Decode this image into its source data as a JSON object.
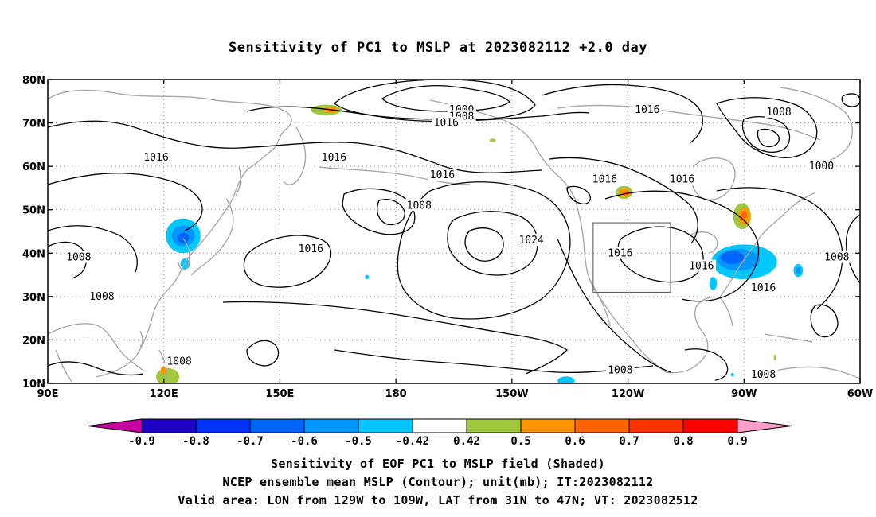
{
  "title": "Sensitivity of PC1 to MSLP at 2023082112 +2.0 day",
  "map": {
    "lon_range": [
      90,
      300
    ],
    "lat_range": [
      10,
      80
    ],
    "gridlines": "dotted",
    "lon_ticks": [
      {
        "lon": 90,
        "label": "90E"
      },
      {
        "lon": 120,
        "label": "120E"
      },
      {
        "lon": 150,
        "label": "150E"
      },
      {
        "lon": 180,
        "label": "180"
      },
      {
        "lon": 210,
        "label": "150W"
      },
      {
        "lon": 240,
        "label": "120W"
      },
      {
        "lon": 270,
        "label": "90W"
      },
      {
        "lon": 300,
        "label": "60W"
      }
    ],
    "lat_ticks": [
      {
        "lat": 10,
        "label": "10N"
      },
      {
        "lat": 20,
        "label": "20N"
      },
      {
        "lat": 30,
        "label": "30N"
      },
      {
        "lat": 40,
        "label": "40N"
      },
      {
        "lat": 50,
        "label": "50N"
      },
      {
        "lat": 60,
        "label": "60N"
      },
      {
        "lat": 70,
        "label": "70N"
      },
      {
        "lat": 80,
        "label": "80N"
      }
    ],
    "valid_box": {
      "lon_min": 231,
      "lon_max": 251,
      "lat_min": 31,
      "lat_max": 47
    },
    "contour_labels": [
      {
        "text": "1000",
        "lon": 197,
        "lat": 73
      },
      {
        "text": "1008",
        "lon": 197,
        "lat": 71.5
      },
      {
        "text": "1016",
        "lon": 193,
        "lat": 70
      },
      {
        "text": "1016",
        "lon": 245,
        "lat": 73
      },
      {
        "text": "1008",
        "lon": 279,
        "lat": 72.5
      },
      {
        "text": "1016",
        "lon": 118,
        "lat": 62
      },
      {
        "text": "1016",
        "lon": 164,
        "lat": 62
      },
      {
        "text": "1016",
        "lon": 192,
        "lat": 58
      },
      {
        "text": "1000",
        "lon": 290,
        "lat": 60
      },
      {
        "text": "1016",
        "lon": 234,
        "lat": 57
      },
      {
        "text": "1016",
        "lon": 254,
        "lat": 57
      },
      {
        "text": "1008",
        "lon": 186,
        "lat": 51
      },
      {
        "text": "1024",
        "lon": 215,
        "lat": 43
      },
      {
        "text": "1016",
        "lon": 158,
        "lat": 41
      },
      {
        "text": "1016",
        "lon": 238,
        "lat": 40
      },
      {
        "text": "1016",
        "lon": 259,
        "lat": 37
      },
      {
        "text": "1008",
        "lon": 98,
        "lat": 39
      },
      {
        "text": "1008",
        "lon": 294,
        "lat": 39
      },
      {
        "text": "1016",
        "lon": 275,
        "lat": 32
      },
      {
        "text": "1008",
        "lon": 104,
        "lat": 30
      },
      {
        "text": "1008",
        "lon": 124,
        "lat": 15
      },
      {
        "text": "1008",
        "lon": 238,
        "lat": 13
      },
      {
        "text": "1008",
        "lon": 275,
        "lat": 12
      }
    ],
    "shaded_regions": [
      {
        "lon": 162,
        "lat": 73,
        "rx": 4,
        "ry": 1.2,
        "color": "#a0c83c"
      },
      {
        "lon": 163,
        "lat": 73,
        "rx": 2,
        "ry": 0.7,
        "color": "#ff9600"
      },
      {
        "lon": 125,
        "lat": 44,
        "rx": 4.5,
        "ry": 4,
        "color": "#00c8ff"
      },
      {
        "lon": 125,
        "lat": 44,
        "rx": 3,
        "ry": 2.4,
        "color": "#0096ff"
      },
      {
        "lon": 125,
        "lat": 43.5,
        "rx": 1.5,
        "ry": 1.2,
        "color": "#0064ff"
      },
      {
        "lon": 125.5,
        "lat": 37.5,
        "rx": 1.2,
        "ry": 1.3,
        "color": "#00c8ff"
      },
      {
        "lon": 239,
        "lat": 54,
        "rx": 2.2,
        "ry": 1.5,
        "color": "#a0c83c"
      },
      {
        "lon": 239,
        "lat": 54,
        "rx": 1.4,
        "ry": 1.0,
        "color": "#ff9600"
      },
      {
        "lon": 239.5,
        "lat": 53.8,
        "rx": 0.7,
        "ry": 0.5,
        "color": "#ff6400"
      },
      {
        "lon": 269.5,
        "lat": 48.5,
        "rx": 2.3,
        "ry": 3,
        "color": "#a0c83c"
      },
      {
        "lon": 270,
        "lat": 48.5,
        "rx": 1.5,
        "ry": 2,
        "color": "#ff9600"
      },
      {
        "lon": 270,
        "lat": 48.8,
        "rx": 0.7,
        "ry": 0.9,
        "color": "#ff6400"
      },
      {
        "lon": 270,
        "lat": 38,
        "rx": 8.5,
        "ry": 4,
        "color": "#00c8ff"
      },
      {
        "lon": 268.5,
        "lat": 38.5,
        "rx": 5.5,
        "ry": 2.5,
        "color": "#0096ff"
      },
      {
        "lon": 267,
        "lat": 39,
        "rx": 3,
        "ry": 1.5,
        "color": "#0064ff"
      },
      {
        "lon": 262,
        "lat": 33,
        "rx": 1,
        "ry": 1.5,
        "color": "#00c8ff"
      },
      {
        "lon": 284,
        "lat": 36,
        "rx": 1.2,
        "ry": 1.5,
        "color": "#00c8ff"
      },
      {
        "lon": 284,
        "lat": 36,
        "rx": 0.6,
        "ry": 0.8,
        "color": "#0096ff"
      },
      {
        "lon": 224,
        "lat": 10.6,
        "rx": 2.2,
        "ry": 1.0,
        "color": "#00c8ff"
      },
      {
        "lon": 121,
        "lat": 11.5,
        "rx": 3,
        "ry": 2,
        "color": "#a0c83c"
      },
      {
        "lon": 120,
        "lat": 13,
        "rx": 0.8,
        "ry": 0.9,
        "color": "#ff9600"
      },
      {
        "lon": 172.5,
        "lat": 34.5,
        "rx": 0.5,
        "ry": 0.5,
        "color": "#00c8ff"
      },
      {
        "lon": 104.5,
        "lat": 29.5,
        "rx": 0.4,
        "ry": 0.6,
        "color": "#00c8ff"
      },
      {
        "lon": 205,
        "lat": 66,
        "rx": 0.8,
        "ry": 0.4,
        "color": "#a0c83c"
      },
      {
        "lon": 278,
        "lat": 16,
        "rx": 0.3,
        "ry": 0.7,
        "color": "#a0c83c"
      },
      {
        "lon": 267,
        "lat": 12,
        "rx": 0.4,
        "ry": 0.4,
        "color": "#00c8ff"
      }
    ]
  },
  "colorbar": {
    "colors": [
      "#1e00c8",
      "#0032ff",
      "#0064ff",
      "#0096ff",
      "#00c8ff",
      "#ffffff",
      "#a0c83c",
      "#ff9600",
      "#ff6400",
      "#ff3200",
      "#ff0000"
    ],
    "under_color": "#c800a0",
    "over_color": "#ff9ec8",
    "labels": [
      "-0.9",
      "-0.8",
      "-0.7",
      "-0.6",
      "-0.5",
      "-0.42",
      "0.42",
      "0.5",
      "0.6",
      "0.7",
      "0.8",
      "0.9"
    ]
  },
  "captions": {
    "line1": "Sensitivity of EOF PC1 to MSLP field (Shaded)",
    "line2": "NCEP ensemble mean MSLP (Contour); unit(mb); IT:2023082112",
    "line3": "Valid area: LON from 129W to 109W, LAT from 31N to 47N; VT: 2023082512"
  }
}
